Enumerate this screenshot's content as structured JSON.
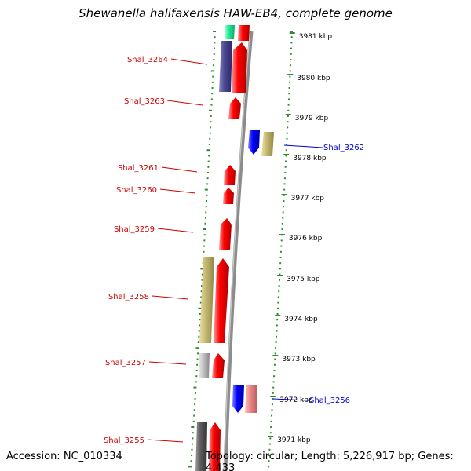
{
  "title": "Shewanella halifaxensis HAW-EB4, complete genome",
  "footer": {
    "accession": "Accession: NC_010334",
    "topology": "Topology: circular; Length: 5,226,917 bp; Genes: 4,433"
  },
  "colors": {
    "forward_gene": "#ff0000",
    "reverse_gene": "#0000ff",
    "forward_label": "#cc0000",
    "reverse_label": "#0000cc",
    "backbone": "#808080",
    "tick": "#2e8b2e"
  },
  "kbp_labels": [
    "3981 kbp",
    "3980 kbp",
    "3979 kbp",
    "3978 kbp",
    "3977 kbp",
    "3976 kbp",
    "3975 kbp",
    "3974 kbp",
    "3973 kbp",
    "3972 kbp",
    "3971 kbp"
  ],
  "gene_labels": [
    {
      "name": "Shal_3264",
      "strand": "forward"
    },
    {
      "name": "Shal_3263",
      "strand": "forward"
    },
    {
      "name": "Shal_3262",
      "strand": "reverse"
    },
    {
      "name": "Shal_3261",
      "strand": "forward"
    },
    {
      "name": "Shal_3260",
      "strand": "forward"
    },
    {
      "name": "Shal_3259",
      "strand": "forward"
    },
    {
      "name": "Shal_3258",
      "strand": "forward"
    },
    {
      "name": "Shal_3257",
      "strand": "forward"
    },
    {
      "name": "Shal_3256",
      "strand": "reverse"
    },
    {
      "name": "Shal_3255",
      "strand": "forward"
    }
  ]
}
